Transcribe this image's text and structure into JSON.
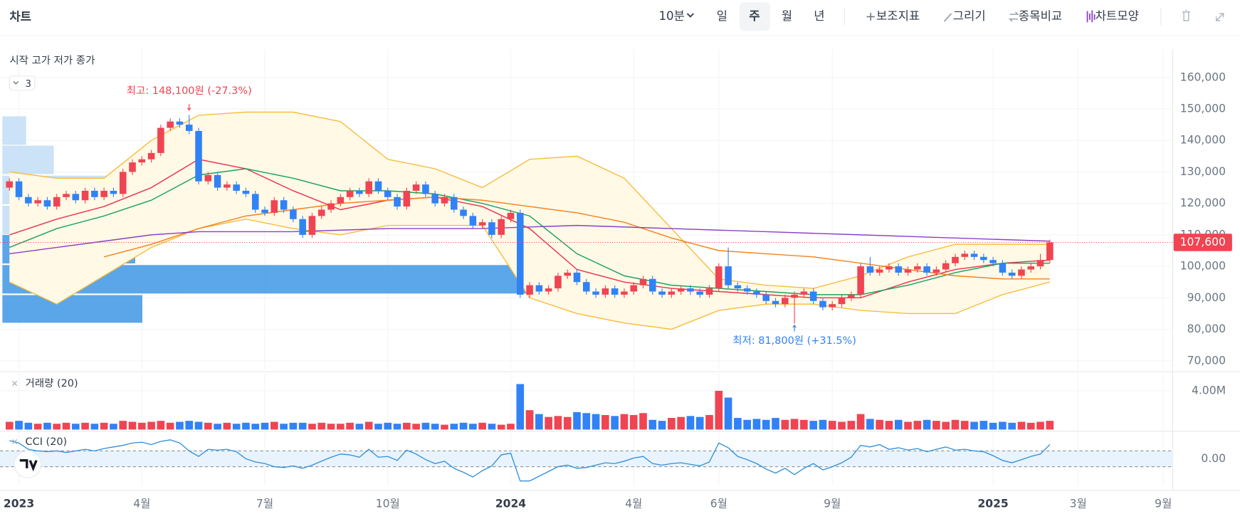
{
  "header": {
    "title": "차트",
    "interval": "10분",
    "periods": [
      "일",
      "주",
      "월",
      "년"
    ],
    "selected_period": 1,
    "tools": [
      "보조지표",
      "그리기",
      "종목비교",
      "차트모양"
    ]
  },
  "legend": {
    "ohlc": "시작 고가 저가 종가",
    "count": "3"
  },
  "chart_data": [
    {
      "type": "candlestick",
      "xlim": [
        -1,
        123
      ],
      "xticks": [
        {
          "value": 1,
          "label": "2023"
        },
        {
          "value": 14,
          "label": "4월"
        },
        {
          "value": 27,
          "label": "7월"
        },
        {
          "value": 40,
          "label": "10월"
        },
        {
          "value": 53,
          "label": "2024"
        },
        {
          "value": 66,
          "label": "4월"
        },
        {
          "value": 75,
          "label": "6월"
        },
        {
          "value": 87,
          "label": "9월"
        },
        {
          "value": 104,
          "label": "2025"
        },
        {
          "value": 113,
          "label": "3월"
        },
        {
          "value": 122,
          "label": "9월"
        }
      ],
      "ylim": [
        67000,
        169000
      ],
      "yticks": [
        {
          "value": 70000,
          "label": "70,000"
        },
        {
          "value": 80000,
          "label": "80,000"
        },
        {
          "value": 90000,
          "label": "90,000"
        },
        {
          "value": 100000,
          "label": "100,000"
        },
        {
          "value": 110000,
          "label": "110,000"
        },
        {
          "value": 120000,
          "label": "120,000"
        },
        {
          "value": 130000,
          "label": "130,000"
        },
        {
          "value": 140000,
          "label": "140,000"
        },
        {
          "value": 150000,
          "label": "150,000"
        },
        {
          "value": 160000,
          "label": "160,000"
        }
      ],
      "grid": true,
      "up_color": "#f04452",
      "down_color": "#3182f6",
      "open": [
        125000,
        127000,
        122000,
        120000,
        121000,
        119000,
        122000,
        123000,
        121000,
        124000,
        122000,
        124000,
        123000,
        130000,
        133000,
        134000,
        136000,
        144000,
        146000,
        145000,
        143000,
        127000,
        129000,
        125000,
        126000,
        124000,
        123000,
        118000,
        117000,
        121000,
        118000,
        115000,
        110000,
        116000,
        118000,
        120000,
        122000,
        124000,
        123000,
        127000,
        124000,
        122000,
        119000,
        124000,
        126000,
        123000,
        120000,
        122000,
        118000,
        116000,
        113000,
        114000,
        110000,
        115000,
        117000,
        91000,
        94000,
        92000,
        93000,
        97000,
        98000,
        95000,
        92000,
        91000,
        93000,
        91000,
        92000,
        94000,
        96000,
        92000,
        91000,
        92000,
        93000,
        92000,
        91000,
        93000,
        100000,
        94000,
        93000,
        92000,
        91000,
        89000,
        88000,
        90000,
        91000,
        92000,
        89000,
        87000,
        88000,
        90000,
        91000,
        100000,
        98000,
        99000,
        100000,
        98000,
        99000,
        100000,
        98000,
        99000,
        101000,
        103000,
        104000,
        103000,
        102000,
        101000,
        98000,
        97000,
        99000,
        100000,
        102000
      ],
      "high": [
        128000,
        128000,
        123000,
        122000,
        122000,
        123000,
        124000,
        124000,
        125000,
        125000,
        125000,
        125000,
        131000,
        134000,
        135000,
        137000,
        145000,
        147000,
        147000,
        148100,
        144000,
        130000,
        130000,
        127000,
        127000,
        125000,
        124000,
        119000,
        122000,
        122000,
        119000,
        116000,
        117000,
        119000,
        121000,
        123000,
        125000,
        125000,
        128000,
        128000,
        125000,
        123000,
        125000,
        127000,
        127000,
        124000,
        123000,
        123000,
        119000,
        117000,
        115000,
        115000,
        116000,
        118000,
        118000,
        95000,
        95000,
        94000,
        98000,
        99000,
        99000,
        96000,
        93000,
        94000,
        94000,
        93000,
        95000,
        97000,
        97000,
        93000,
        93000,
        94000,
        94000,
        93000,
        94000,
        101000,
        106000,
        95000,
        94000,
        93000,
        92000,
        90000,
        91000,
        92000,
        93000,
        93000,
        90000,
        89000,
        91000,
        92000,
        101000,
        103000,
        100000,
        101000,
        101000,
        100000,
        101000,
        101000,
        100000,
        102000,
        104000,
        105000,
        105000,
        104000,
        103000,
        102000,
        99000,
        100000,
        101000,
        104000,
        108500
      ],
      "low": [
        124000,
        121000,
        119000,
        119000,
        118000,
        118000,
        121000,
        120000,
        120000,
        121000,
        121000,
        122000,
        122000,
        129000,
        132000,
        133000,
        135000,
        143000,
        144000,
        142000,
        126000,
        126000,
        124000,
        124000,
        123000,
        122000,
        117000,
        116000,
        116000,
        117000,
        114000,
        109000,
        109000,
        115000,
        117000,
        119000,
        121000,
        122000,
        122000,
        123000,
        121000,
        118000,
        118000,
        123000,
        122000,
        119000,
        119000,
        117000,
        115000,
        112000,
        112000,
        109000,
        109000,
        114000,
        90000,
        90000,
        91000,
        91000,
        92000,
        96000,
        94000,
        91000,
        90000,
        90000,
        90000,
        90000,
        91000,
        93000,
        91000,
        90000,
        90000,
        91000,
        91000,
        90000,
        90000,
        92000,
        93000,
        92000,
        91000,
        90000,
        88000,
        87000,
        87000,
        81800,
        90000,
        88000,
        86000,
        86000,
        87000,
        89000,
        90000,
        97000,
        97000,
        98000,
        97000,
        97000,
        98000,
        97000,
        97000,
        98000,
        100000,
        102000,
        102000,
        101000,
        100000,
        97000,
        96000,
        96000,
        98000,
        99000,
        101000
      ],
      "close": [
        127000,
        122000,
        120000,
        121000,
        119000,
        122000,
        123000,
        121000,
        124000,
        122000,
        124000,
        123000,
        130000,
        133000,
        134000,
        136000,
        144000,
        146000,
        145000,
        143000,
        127000,
        129000,
        125000,
        126000,
        124000,
        123000,
        118000,
        117000,
        121000,
        118000,
        115000,
        110000,
        116000,
        118000,
        120000,
        122000,
        124000,
        123000,
        127000,
        124000,
        122000,
        119000,
        124000,
        126000,
        123000,
        120000,
        122000,
        118000,
        116000,
        113000,
        114000,
        110000,
        115000,
        117000,
        91000,
        94000,
        92000,
        93000,
        97000,
        98000,
        95000,
        92000,
        91000,
        93000,
        91000,
        92000,
        94000,
        96000,
        92000,
        91000,
        92000,
        93000,
        92000,
        91000,
        93000,
        100000,
        94000,
        93000,
        92000,
        91000,
        89000,
        88000,
        90000,
        91000,
        92000,
        89000,
        87000,
        88000,
        90000,
        91000,
        100000,
        98000,
        99000,
        100000,
        98000,
        99000,
        100000,
        98000,
        99000,
        101000,
        103000,
        104000,
        103000,
        102000,
        101000,
        98000,
        97000,
        99000,
        100000,
        102000,
        107600
      ],
      "band": {
        "color": "#f9b934",
        "fill": "#fff9e6",
        "x": [
          0,
          5,
          10,
          15,
          20,
          25,
          30,
          35,
          40,
          45,
          50,
          55,
          60,
          65,
          70,
          75,
          80,
          85,
          90,
          95,
          100,
          105,
          110
        ],
        "upper": [
          130000,
          128000,
          128000,
          140000,
          148000,
          149000,
          149000,
          146000,
          134000,
          131000,
          125000,
          134000,
          135000,
          128000,
          112000,
          96000,
          94000,
          93000,
          97000,
          103000,
          107000,
          107000,
          107000
        ],
        "lower": [
          95000,
          88000,
          97000,
          106000,
          112000,
          115000,
          112000,
          110000,
          113000,
          113000,
          113000,
          90000,
          85000,
          82000,
          80000,
          86000,
          88000,
          88000,
          86000,
          85000,
          85000,
          91000,
          95000
        ]
      },
      "series": [
        {
          "color": "#e8344e",
          "x": [
            0,
            5,
            10,
            15,
            20,
            25,
            30,
            35,
            40,
            45,
            50,
            55,
            60,
            65,
            70,
            75,
            80,
            85,
            90,
            95,
            100,
            105,
            110
          ],
          "values": [
            110000,
            115000,
            119000,
            125000,
            134000,
            131000,
            124000,
            118000,
            121000,
            122000,
            119000,
            112000,
            99000,
            95000,
            93000,
            92000,
            91000,
            90000,
            90000,
            95000,
            99000,
            101000,
            102000
          ]
        },
        {
          "color": "#1aa25f",
          "x": [
            0,
            5,
            10,
            15,
            20,
            25,
            30,
            35,
            40,
            45,
            50,
            55,
            60,
            65,
            70,
            75,
            80,
            85,
            90,
            95,
            100,
            105,
            110
          ],
          "values": [
            106000,
            112000,
            116000,
            121000,
            129000,
            131000,
            128000,
            124000,
            124000,
            123000,
            120000,
            116000,
            104000,
            97000,
            94000,
            93000,
            92000,
            91000,
            91000,
            94000,
            98000,
            101000,
            101000
          ]
        },
        {
          "color": "#f5821f",
          "x": [
            10,
            15,
            20,
            25,
            30,
            35,
            40,
            45,
            50,
            55,
            60,
            65,
            70,
            75,
            80,
            85,
            90,
            95,
            100,
            105,
            110
          ],
          "values": [
            103000,
            107000,
            112000,
            116000,
            118000,
            120000,
            121000,
            122000,
            121000,
            119000,
            117000,
            114000,
            109000,
            105000,
            104000,
            103000,
            101000,
            99000,
            97000,
            96000,
            96000
          ]
        },
        {
          "color": "#8c3fc8",
          "x": [
            0,
            5,
            10,
            15,
            20,
            30,
            40,
            50,
            60,
            70,
            80,
            90,
            100,
            110
          ],
          "values": [
            104000,
            106000,
            108000,
            110000,
            111000,
            111000,
            112000,
            112000,
            113000,
            112000,
            111000,
            110000,
            109000,
            108000
          ]
        }
      ],
      "last_price": {
        "value": 107600,
        "label": "107,600"
      },
      "annotations": [
        {
          "text": "최고: 148,100원 (-27.3%)",
          "x": 19,
          "y": 148100,
          "color": "#f04452"
        },
        {
          "text": "최저: 81,800원 (+31.5%)",
          "x": 83,
          "y": 81800,
          "color": "#3182f6"
        }
      ]
    },
    {
      "type": "bar",
      "title": "거래량 (20)",
      "xlim": [
        -1,
        123
      ],
      "ylim": [
        0,
        5800000
      ],
      "yticks": [
        {
          "value": 4000000,
          "label": "4.00M"
        }
      ],
      "values": [
        800000,
        900000,
        700000,
        600000,
        700000,
        600000,
        700000,
        600000,
        700000,
        600000,
        700000,
        600000,
        900000,
        800000,
        700000,
        800000,
        900000,
        700000,
        800000,
        900000,
        800000,
        700000,
        600000,
        700000,
        600000,
        700000,
        600000,
        700000,
        800000,
        600000,
        700000,
        700000,
        600000,
        700000,
        600000,
        600000,
        700000,
        600000,
        800000,
        600000,
        700000,
        600000,
        700000,
        600000,
        700000,
        600000,
        500000,
        600000,
        700000,
        600000,
        700000,
        600000,
        500000,
        600000,
        4700000,
        2000000,
        1600000,
        1300000,
        1400000,
        1300000,
        1800000,
        1700000,
        1600000,
        1500000,
        1400000,
        1600000,
        1500000,
        1700000,
        1000000,
        900000,
        1200000,
        1300000,
        1400000,
        1300000,
        1500000,
        4000000,
        3300000,
        1200000,
        1000000,
        1100000,
        1000000,
        1200000,
        1000000,
        1100000,
        1000000,
        900000,
        1000000,
        900000,
        800000,
        900000,
        1600000,
        1100000,
        1000000,
        900000,
        1000000,
        800000,
        900000,
        1000000,
        900000,
        800000,
        1000000,
        900000,
        800000,
        900000,
        700000,
        800000,
        700000,
        800000,
        700000,
        800000,
        900000
      ]
    },
    {
      "type": "line",
      "title": "CCI (20)",
      "color": "#2f8fd8",
      "xlim": [
        -1,
        123
      ],
      "ylim": [
        -340,
        340
      ],
      "yticks": [
        {
          "value": 0,
          "label": "0.00"
        }
      ],
      "levels": [
        100,
        -100
      ],
      "values": [
        230,
        200,
        120,
        100,
        90,
        100,
        80,
        100,
        120,
        100,
        130,
        150,
        170,
        200,
        210,
        180,
        220,
        240,
        200,
        100,
        30,
        120,
        110,
        120,
        90,
        0,
        -40,
        -60,
        -100,
        -110,
        -90,
        -120,
        -80,
        -30,
        20,
        60,
        50,
        20,
        120,
        20,
        30,
        -20,
        110,
        60,
        -10,
        -60,
        -30,
        -120,
        -170,
        -230,
        -150,
        -90,
        50,
        70,
        -280,
        -280,
        -220,
        -160,
        -100,
        -80,
        -120,
        -110,
        -80,
        -50,
        -60,
        -30,
        10,
        30,
        -60,
        -80,
        -60,
        -50,
        -70,
        -90,
        -40,
        200,
        140,
        30,
        -10,
        -60,
        -130,
        -180,
        -120,
        -200,
        -120,
        -60,
        -140,
        -100,
        -50,
        20,
        170,
        150,
        180,
        120,
        140,
        110,
        130,
        90,
        120,
        150,
        110,
        120,
        100,
        90,
        40,
        -20,
        -50,
        -10,
        30,
        60,
        180
      ]
    }
  ]
}
